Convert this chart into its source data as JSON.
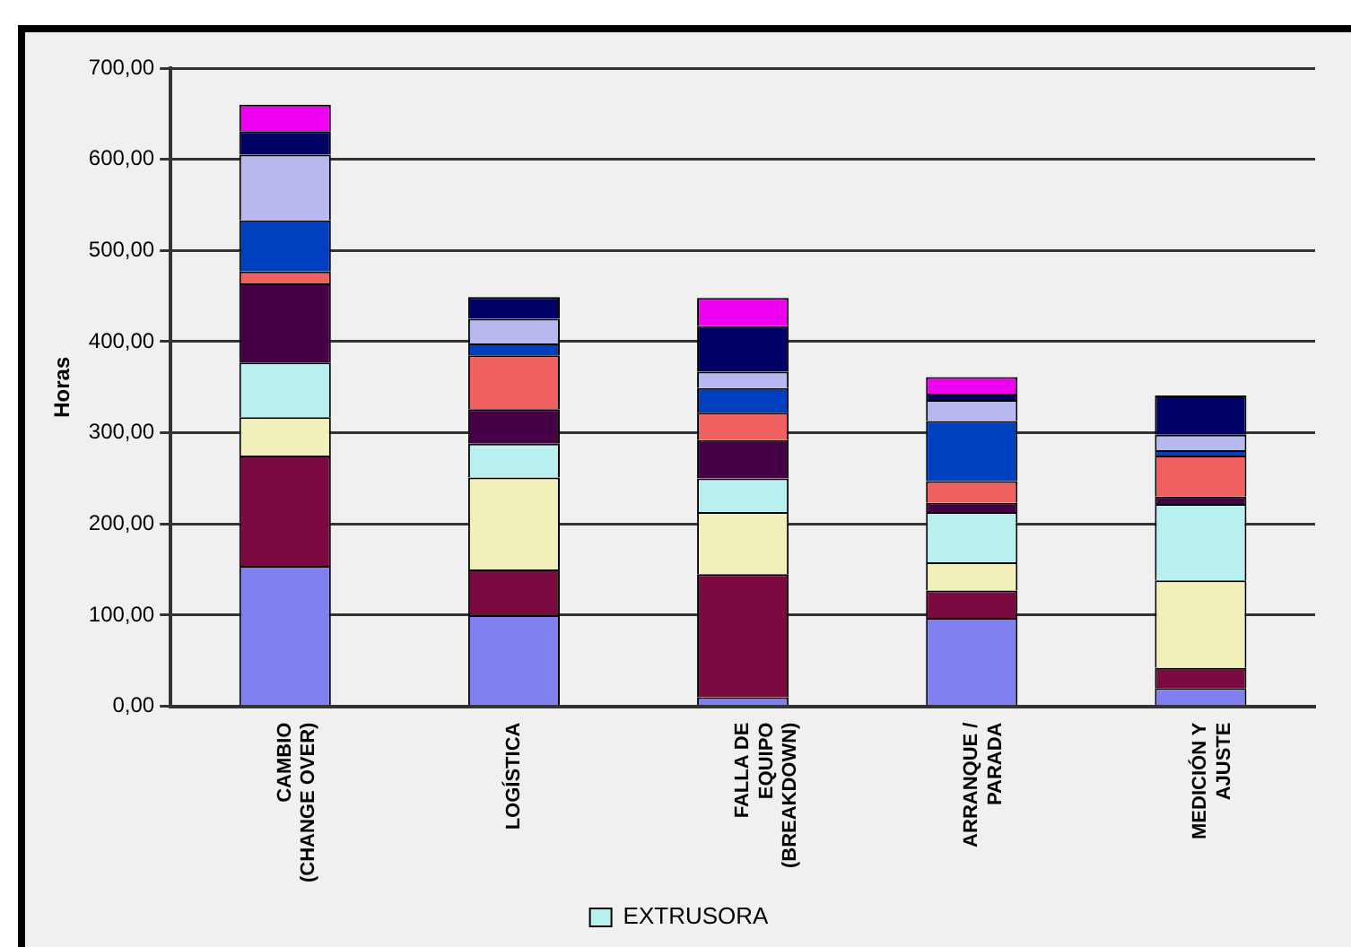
{
  "chart_data": {
    "type": "bar",
    "stacked": true,
    "ylabel": "Horas",
    "categories": [
      "CAMBIO\n(CHANGE OVER)",
      "LOGÍSTICA",
      "FALLA DE\nEQUIPO\n(BREAKDOWN)",
      "ARRANQUE /\nPARADA",
      "MEDICIÓN Y\nAJUSTE"
    ],
    "series": [
      {
        "color": "#8080f0",
        "values": [
          154,
          100,
          10,
          97,
          20
        ]
      },
      {
        "color": "#7a0a40",
        "values": [
          121,
          50,
          135,
          30,
          22
        ]
      },
      {
        "color": "#f0f0b8",
        "values": [
          42,
          101,
          68,
          31,
          96
        ]
      },
      {
        "name": "EXTRUSORA",
        "color": "#b8f0f0",
        "values": [
          60,
          37,
          37,
          55,
          84
        ]
      },
      {
        "color": "#460046",
        "values": [
          87,
          38,
          42,
          10,
          8
        ]
      },
      {
        "color": "#f06060",
        "values": [
          13,
          59,
          30,
          24,
          45
        ]
      },
      {
        "color": "#0040c0",
        "values": [
          56,
          13,
          27,
          66,
          6
        ]
      },
      {
        "color": "#b8b8f0",
        "values": [
          72,
          27,
          18,
          23,
          17
        ]
      },
      {
        "color": "#000066",
        "values": [
          26,
          24,
          50,
          7,
          43
        ]
      },
      {
        "color": "#f000f0",
        "values": [
          29,
          0,
          31,
          18,
          0
        ]
      }
    ],
    "ylim": [
      0,
      700
    ],
    "yticks": [
      {
        "value": 0,
        "label": "0,00"
      },
      {
        "value": 100,
        "label": "100,00"
      },
      {
        "value": 200,
        "label": "200,00"
      },
      {
        "value": 300,
        "label": "300,00"
      },
      {
        "value": 400,
        "label": "400,00"
      },
      {
        "value": 500,
        "label": "500,00"
      },
      {
        "value": 600,
        "label": "600,00"
      },
      {
        "value": 700,
        "label": "700,00"
      }
    ],
    "grid": "y",
    "legend": "bottom"
  }
}
